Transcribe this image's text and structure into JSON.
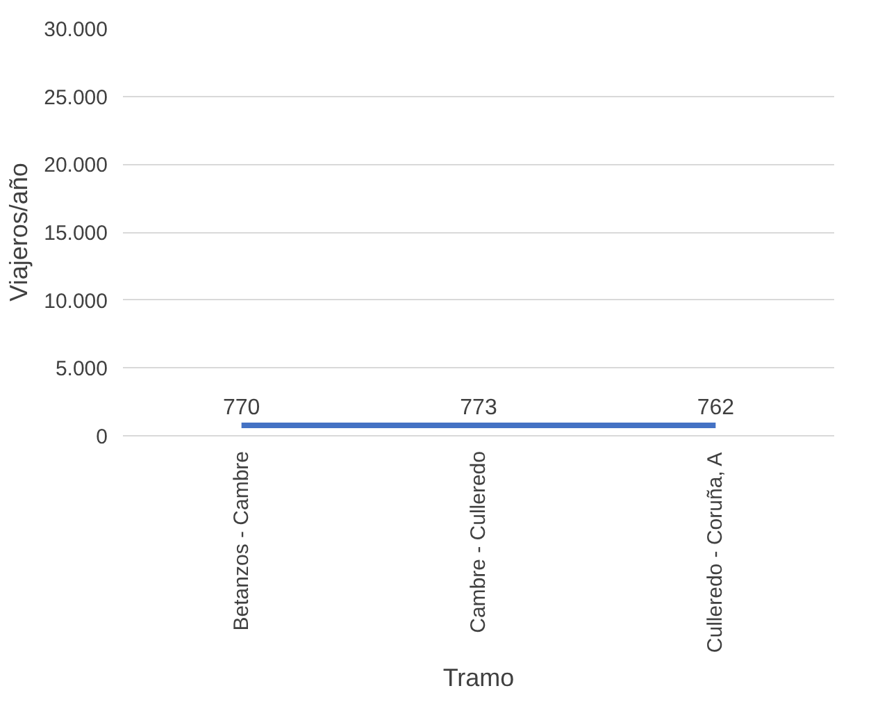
{
  "chart_data": {
    "type": "line",
    "xlabel": "Tramo",
    "ylabel": "Viajeros/año",
    "categories": [
      "Betanzos - Cambre",
      "Cambre - Culleredo",
      "Culleredo - Coruña, A"
    ],
    "series": [
      {
        "color": "#4472c4",
        "values": [
          770,
          773,
          762
        ]
      }
    ],
    "ylim": [
      0,
      30000
    ],
    "yticks": [
      {
        "value": 0,
        "label": "0"
      },
      {
        "value": 5000,
        "label": "5.000"
      },
      {
        "value": 10000,
        "label": "10.000"
      },
      {
        "value": 15000,
        "label": "15.000"
      },
      {
        "value": 20000,
        "label": "20.000"
      },
      {
        "value": 25000,
        "label": "25.000"
      },
      {
        "value": 30000,
        "label": "30.000"
      }
    ],
    "grid": "y",
    "data_labels": true,
    "marker": "none",
    "line_style": "solid"
  }
}
